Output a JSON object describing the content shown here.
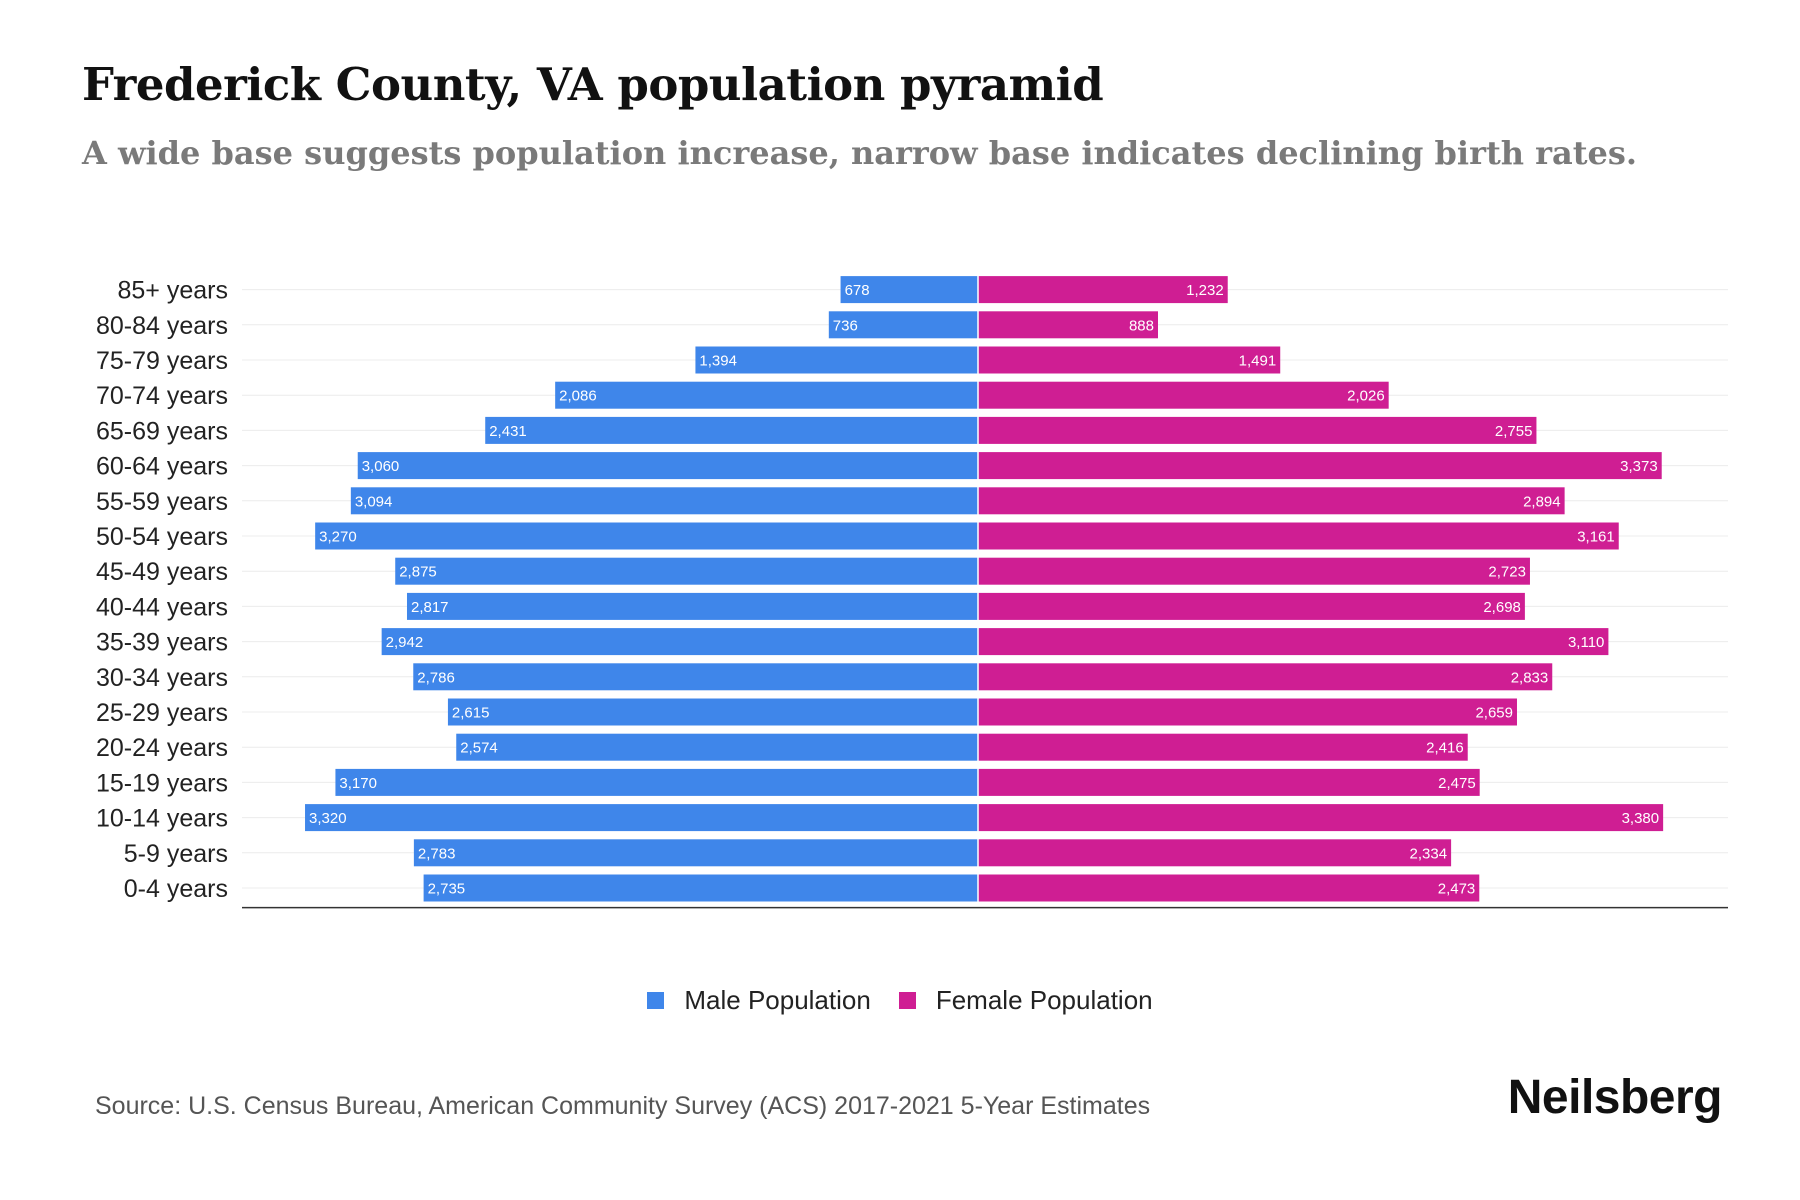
{
  "title": "Frederick County, VA population pyramid",
  "subtitle": "A wide base suggests population increase, narrow base indicates declining birth rates.",
  "source": "Source: U.S. Census Bureau, American Community Survey (ACS) 2017-2021 5-Year Estimates",
  "brand": "Neilsberg",
  "colors": {
    "male": "#3f86ea",
    "female": "#cf1e93"
  },
  "legend": {
    "male": "Male Population",
    "female": "Female Population"
  },
  "chart_data": {
    "type": "bar",
    "orientation": "horizontal-pyramid",
    "categories": [
      "85+ years",
      "80-84 years",
      "75-79 years",
      "70-74 years",
      "65-69 years",
      "60-64 years",
      "55-59 years",
      "50-54 years",
      "45-49 years",
      "40-44 years",
      "35-39 years",
      "30-34 years",
      "25-29 years",
      "20-24 years",
      "15-19 years",
      "10-14 years",
      "5-9 years",
      "0-4 years"
    ],
    "series": [
      {
        "name": "Male Population",
        "values": [
          678,
          736,
          1394,
          2086,
          2431,
          3060,
          3094,
          3270,
          2875,
          2817,
          2942,
          2786,
          2615,
          2574,
          3170,
          3320,
          2783,
          2735
        ],
        "labels": [
          "678",
          "736",
          "1,394",
          "2,086",
          "2,431",
          "3,060",
          "3,094",
          "3,270",
          "2,875",
          "2,817",
          "2,942",
          "2,786",
          "2,615",
          "2,574",
          "3,170",
          "3,320",
          "2,783",
          "2,735"
        ]
      },
      {
        "name": "Female Population",
        "values": [
          1232,
          888,
          1491,
          2026,
          2755,
          3373,
          2894,
          3161,
          2723,
          2698,
          3110,
          2833,
          2659,
          2416,
          2475,
          3380,
          2334,
          2473
        ],
        "labels": [
          "1,232",
          "888",
          "1,491",
          "2,026",
          "2,755",
          "3,373",
          "2,894",
          "3,161",
          "2,723",
          "2,698",
          "3,110",
          "2,833",
          "2,659",
          "2,416",
          "2,475",
          "3,380",
          "2,334",
          "2,473"
        ]
      }
    ],
    "xlim": [
      -3700,
      3700
    ],
    "grid": true,
    "legend_position": "bottom"
  }
}
